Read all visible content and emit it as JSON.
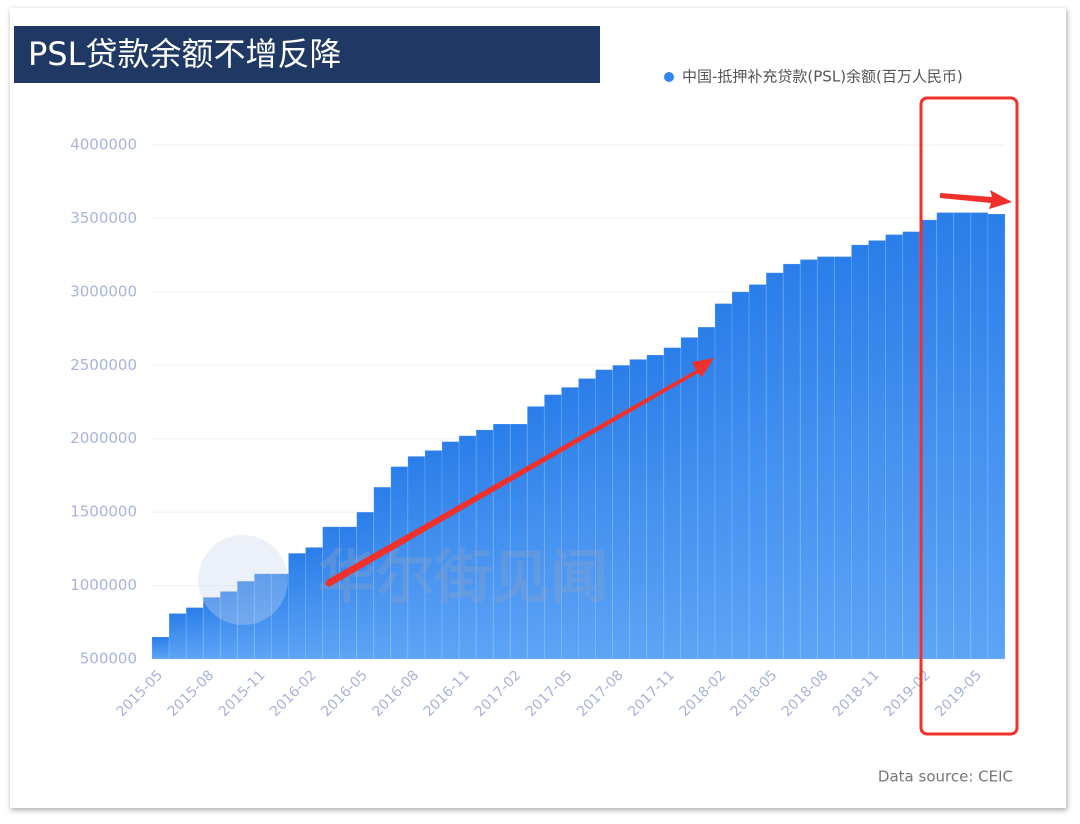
{
  "chart_data": {
    "type": "bar",
    "title": "PSL贷款余额不增反降",
    "source": "Data source: CEIC",
    "watermark": "华尔街见闻",
    "color": "#2f86f0",
    "legend": "top-right",
    "grid": true,
    "categories": [
      "2015-05",
      null,
      null,
      "2015-08",
      null,
      null,
      "2015-11",
      null,
      null,
      "2016-02",
      null,
      null,
      "2016-05",
      null,
      null,
      "2016-08",
      null,
      null,
      "2016-11",
      null,
      null,
      "2017-02",
      null,
      null,
      "2017-05",
      null,
      null,
      "2017-08",
      null,
      null,
      "2017-11",
      null,
      null,
      "2018-02",
      null,
      null,
      "2018-05",
      null,
      null,
      "2018-08",
      null,
      null,
      "2018-11",
      null,
      null,
      "2019-02",
      null,
      null,
      "2019-05",
      null
    ],
    "series": [
      {
        "name": "中国-抵押补充贷款(PSL)余额(百万人民币)",
        "color": "#2f86f0",
        "values": [
          650000,
          810000,
          850000,
          920000,
          960000,
          1030000,
          1080000,
          1080000,
          1220000,
          1260000,
          1400000,
          1400000,
          1500000,
          1670000,
          1810000,
          1880000,
          1920000,
          1980000,
          2020000,
          2060000,
          2100000,
          2100000,
          2220000,
          2300000,
          2350000,
          2410000,
          2470000,
          2500000,
          2540000,
          2570000,
          2620000,
          2690000,
          2760000,
          2920000,
          3000000,
          3050000,
          3130000,
          3190000,
          3220000,
          3240000,
          3240000,
          3320000,
          3350000,
          3390000,
          3410000,
          3490000,
          3540000,
          3540000,
          3540000,
          3530000
        ]
      }
    ],
    "ylim": [
      500000,
      4000000
    ],
    "yticks": [
      500000,
      1000000,
      1500000,
      2000000,
      2500000,
      3000000,
      3500000,
      4000000
    ]
  }
}
